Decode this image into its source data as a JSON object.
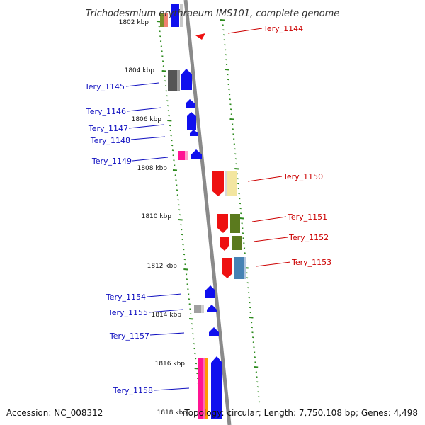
{
  "title": "Trichodesmium erythraeum IMS101, complete genome",
  "accession": "Accession: NC_008312",
  "summary": "Topology: circular; Length: 7,750,108 bp; Genes: 4,498",
  "colors": {
    "backbone": "#8a8a8a",
    "tick": "#2e8b1f",
    "forward_label": "#1010c0",
    "reverse_label": "#cc0000"
  },
  "scale_labels": [
    "1802 kbp",
    "1804 kbp",
    "1806 kbp",
    "1808 kbp",
    "1810 kbp",
    "1812 kbp",
    "1814 kbp",
    "1816 kbp",
    "1818 kbp"
  ],
  "left_genes": [
    "Tery_1145",
    "Tery_1146",
    "Tery_1147",
    "Tery_1148",
    "Tery_1149",
    "Tery_1154",
    "Tery_1155",
    "Tery_1157",
    "Tery_1158"
  ],
  "right_genes": [
    "Tery_1144",
    "Tery_1150",
    "Tery_1151",
    "Tery_1152",
    "Tery_1153"
  ]
}
